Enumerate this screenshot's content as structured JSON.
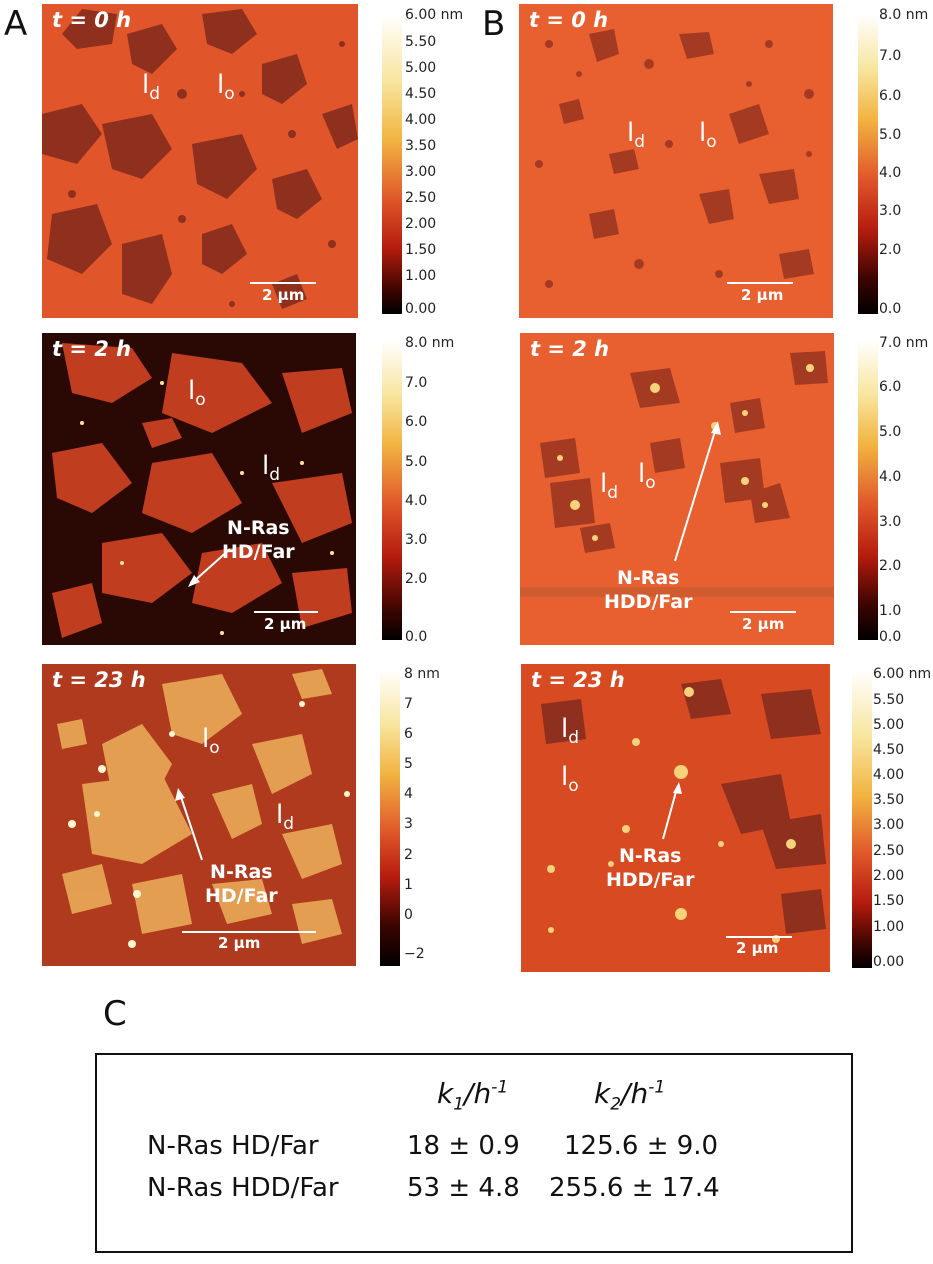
{
  "figure": {
    "panel_labels": {
      "a": "A",
      "b": "B",
      "c": "C"
    },
    "panels": [
      {
        "id": "a0",
        "time": "t = 0 h",
        "scale_bar": "2 µm",
        "labels": [
          {
            "main": "l",
            "sub": "d"
          },
          {
            "main": "l",
            "sub": "o"
          }
        ],
        "annotation": [],
        "colorbar": {
          "ticks": [
            "6.00 nm",
            "5.50",
            "5.00",
            "4.50",
            "4.00",
            "3.50",
            "3.00",
            "2.50",
            "2.00",
            "1.50",
            "1.00",
            "0.00"
          ]
        }
      },
      {
        "id": "a2",
        "time": "t = 2 h",
        "scale_bar": "2 µm",
        "labels": [
          {
            "main": "l",
            "sub": "o"
          },
          {
            "main": "l",
            "sub": "d"
          }
        ],
        "annotation": [
          "N-Ras",
          "HD/Far"
        ],
        "colorbar": {
          "ticks": [
            "8.0 nm",
            "7.0",
            "6.0",
            "5.0",
            "4.0",
            "3.0",
            "2.0",
            "0.0"
          ]
        }
      },
      {
        "id": "a23",
        "time": "t = 23 h",
        "scale_bar": "2 µm",
        "labels": [
          {
            "main": "l",
            "sub": "o"
          },
          {
            "main": "l",
            "sub": "d"
          }
        ],
        "annotation": [
          "N-Ras",
          "HD/Far"
        ],
        "colorbar": {
          "ticks": [
            "8 nm",
            "7",
            "6",
            "5",
            "4",
            "3",
            "2",
            "1",
            "0",
            "−2"
          ]
        }
      },
      {
        "id": "b0",
        "time": "t = 0 h",
        "scale_bar": "2 µm",
        "labels": [
          {
            "main": "l",
            "sub": "d"
          },
          {
            "main": "l",
            "sub": "o"
          }
        ],
        "annotation": [],
        "colorbar": {
          "ticks": [
            "8.0 nm",
            "7.0",
            "6.0",
            "5.0",
            "4.0",
            "3.0",
            "2.0",
            "0.0"
          ]
        }
      },
      {
        "id": "b2",
        "time": "t = 2 h",
        "scale_bar": "2 µm",
        "labels": [
          {
            "main": "l",
            "sub": "d"
          },
          {
            "main": "l",
            "sub": "o"
          }
        ],
        "annotation": [
          "N-Ras",
          "HDD/Far"
        ],
        "colorbar": {
          "ticks": [
            "7.0 nm",
            "6.0",
            "5.0",
            "4.0",
            "3.0",
            "2.0",
            "1.0",
            "0.0"
          ]
        }
      },
      {
        "id": "b23",
        "time": "t = 23 h",
        "scale_bar": "2 µm",
        "labels": [
          {
            "main": "l",
            "sub": "d"
          },
          {
            "main": "l",
            "sub": "o"
          }
        ],
        "annotation": [
          "N-Ras",
          "HDD/Far"
        ],
        "colorbar": {
          "ticks": [
            "6.00 nm",
            "5.50",
            "5.00",
            "4.50",
            "4.00",
            "3.50",
            "3.00",
            "2.50",
            "2.00",
            "1.50",
            "1.00",
            "0.00"
          ]
        }
      }
    ]
  },
  "table": {
    "col1_main": "k",
    "col1_sub": "1",
    "col1_unit": "/h",
    "col1_sup": "-1",
    "col2_main": "k",
    "col2_sub": "2",
    "col2_unit": "/h",
    "col2_sup": "-1",
    "rows": [
      {
        "name": "N-Ras HD/Far",
        "k1": "18 ± 0.9",
        "k2": "125.6 ± 9.0"
      },
      {
        "name": "N-Ras HDD/Far",
        "k1": "53 ± 4.8",
        "k2": "255.6 ± 17.4"
      }
    ]
  },
  "colors": {
    "membrane_orange": "#e0562a",
    "domain_dark": "#8f2f1d",
    "background_dark": "#2a0904",
    "protein_bright": "#f6d27a"
  }
}
